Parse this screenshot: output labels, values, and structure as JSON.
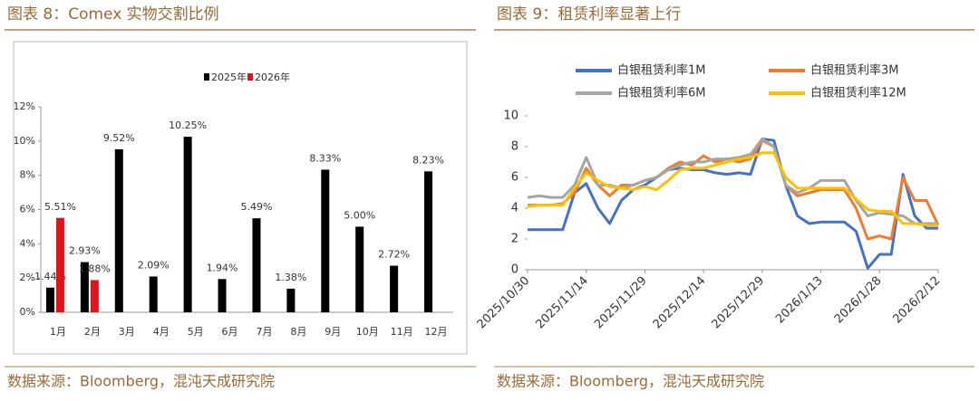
{
  "chart_data": [
    {
      "type": "bar",
      "title": "图表 8：Comex 实物交割比例",
      "source": "数据来源：Bloomberg，混沌天成研究院",
      "categories": [
        "1月",
        "2月",
        "3月",
        "4月",
        "5月",
        "6月",
        "7月",
        "8月",
        "9月",
        "10月",
        "11月",
        "12月"
      ],
      "series": [
        {
          "name": "2025年",
          "color": "#000000",
          "values": [
            1.44,
            2.93,
            9.52,
            2.09,
            10.25,
            1.94,
            5.49,
            1.38,
            8.33,
            5.0,
            2.72,
            8.23
          ],
          "value_labels": [
            "1.44%",
            "2.93%",
            "9.52%",
            "2.09%",
            "10.25%",
            "1.94%",
            "5.49%",
            "1.38%",
            "8.33%",
            "5.00%",
            "2.72%",
            "8.23%"
          ]
        },
        {
          "name": "2026年",
          "color": "#e0141e",
          "values": [
            5.51,
            1.88,
            null,
            null,
            null,
            null,
            null,
            null,
            null,
            null,
            null,
            null
          ],
          "value_labels": [
            "5.51%",
            "1.88%",
            null,
            null,
            null,
            null,
            null,
            null,
            null,
            null,
            null,
            null
          ]
        }
      ],
      "ylim": [
        0,
        12
      ],
      "yticks": [
        {
          "value": 0,
          "label": "0%"
        },
        {
          "value": 2,
          "label": "2%"
        },
        {
          "value": 4,
          "label": "4%"
        },
        {
          "value": 6,
          "label": "6%"
        },
        {
          "value": 8,
          "label": "8%"
        },
        {
          "value": 10,
          "label": "10%"
        },
        {
          "value": 12,
          "label": "12%"
        }
      ],
      "legend": "top"
    },
    {
      "type": "line",
      "title": "图表 9：租赁利率显著上行",
      "source": "数据来源：Bloomberg，混沌天成研究院",
      "x": [
        "2025/10/30",
        "2025/11/2",
        "2025/11/5",
        "2025/11/8",
        "2025/11/11",
        "2025/11/14",
        "2025/11/17",
        "2025/11/20",
        "2025/11/23",
        "2025/11/26",
        "2025/11/29",
        "2025/12/2",
        "2025/12/5",
        "2025/12/8",
        "2025/12/11",
        "2025/12/14",
        "2025/12/17",
        "2025/12/20",
        "2025/12/23",
        "2025/12/26",
        "2025/12/29",
        "2026/1/1",
        "2026/1/4",
        "2026/1/7",
        "2026/1/10",
        "2026/1/13",
        "2026/1/16",
        "2026/1/19",
        "2026/1/22",
        "2026/1/25",
        "2026/1/28",
        "2026/1/31",
        "2026/2/3",
        "2026/2/6",
        "2026/2/9",
        "2026/2/12"
      ],
      "series": [
        {
          "name": "白银租赁利率1M",
          "color": "#4472c4",
          "values": [
            2.6,
            2.6,
            2.6,
            2.6,
            5.0,
            5.6,
            4.0,
            3.0,
            4.5,
            5.2,
            5.5,
            6.0,
            6.5,
            6.6,
            6.5,
            6.5,
            6.3,
            6.2,
            6.3,
            6.2,
            8.5,
            8.4,
            5.5,
            3.5,
            3.0,
            3.1,
            3.1,
            3.1,
            2.5,
            0.1,
            1.0,
            1.0,
            6.2,
            3.5,
            2.7,
            2.7
          ]
        },
        {
          "name": "白银租赁利率3M",
          "color": "#ed7d31",
          "values": [
            4.2,
            4.2,
            4.2,
            4.3,
            5.0,
            6.6,
            5.5,
            4.8,
            5.5,
            5.5,
            5.8,
            6.0,
            6.6,
            7.0,
            6.8,
            7.4,
            7.0,
            7.2,
            7.0,
            7.2,
            8.4,
            8.0,
            5.5,
            4.8,
            5.0,
            5.2,
            5.2,
            5.2,
            4.0,
            2.0,
            2.2,
            2.0,
            6.0,
            4.5,
            4.5,
            2.9
          ]
        },
        {
          "name": "白银租赁利率6M",
          "color": "#a5a5a5",
          "values": [
            4.7,
            4.8,
            4.7,
            4.7,
            5.5,
            7.3,
            5.5,
            5.5,
            5.3,
            5.5,
            5.8,
            6.0,
            6.5,
            6.8,
            7.0,
            7.0,
            7.2,
            7.2,
            7.3,
            7.5,
            8.5,
            8.0,
            5.5,
            5.0,
            5.3,
            5.8,
            5.8,
            5.8,
            4.5,
            3.5,
            3.7,
            3.6,
            3.5,
            3.0,
            3.0,
            3.0
          ]
        },
        {
          "name": "白银租赁利率12M",
          "color": "#ffc000",
          "values": [
            4.1,
            4.2,
            4.2,
            4.2,
            5.3,
            6.3,
            5.8,
            5.4,
            5.3,
            5.2,
            5.4,
            5.2,
            5.8,
            6.5,
            6.6,
            6.6,
            6.8,
            7.0,
            7.2,
            7.3,
            7.6,
            7.6,
            6.0,
            5.3,
            5.3,
            5.3,
            5.3,
            5.3,
            4.6,
            3.9,
            3.8,
            3.8,
            3.0,
            3.0,
            2.9,
            2.9
          ]
        }
      ],
      "ylim": [
        0,
        10
      ],
      "yticks": [
        0,
        2,
        4,
        6,
        8,
        10
      ],
      "xticks": [
        "2025/10/30",
        "2025/11/14",
        "2025/11/29",
        "2025/12/14",
        "2025/12/29",
        "2026/1/13",
        "2026/1/28",
        "2026/2/12"
      ],
      "legend": "top"
    }
  ]
}
